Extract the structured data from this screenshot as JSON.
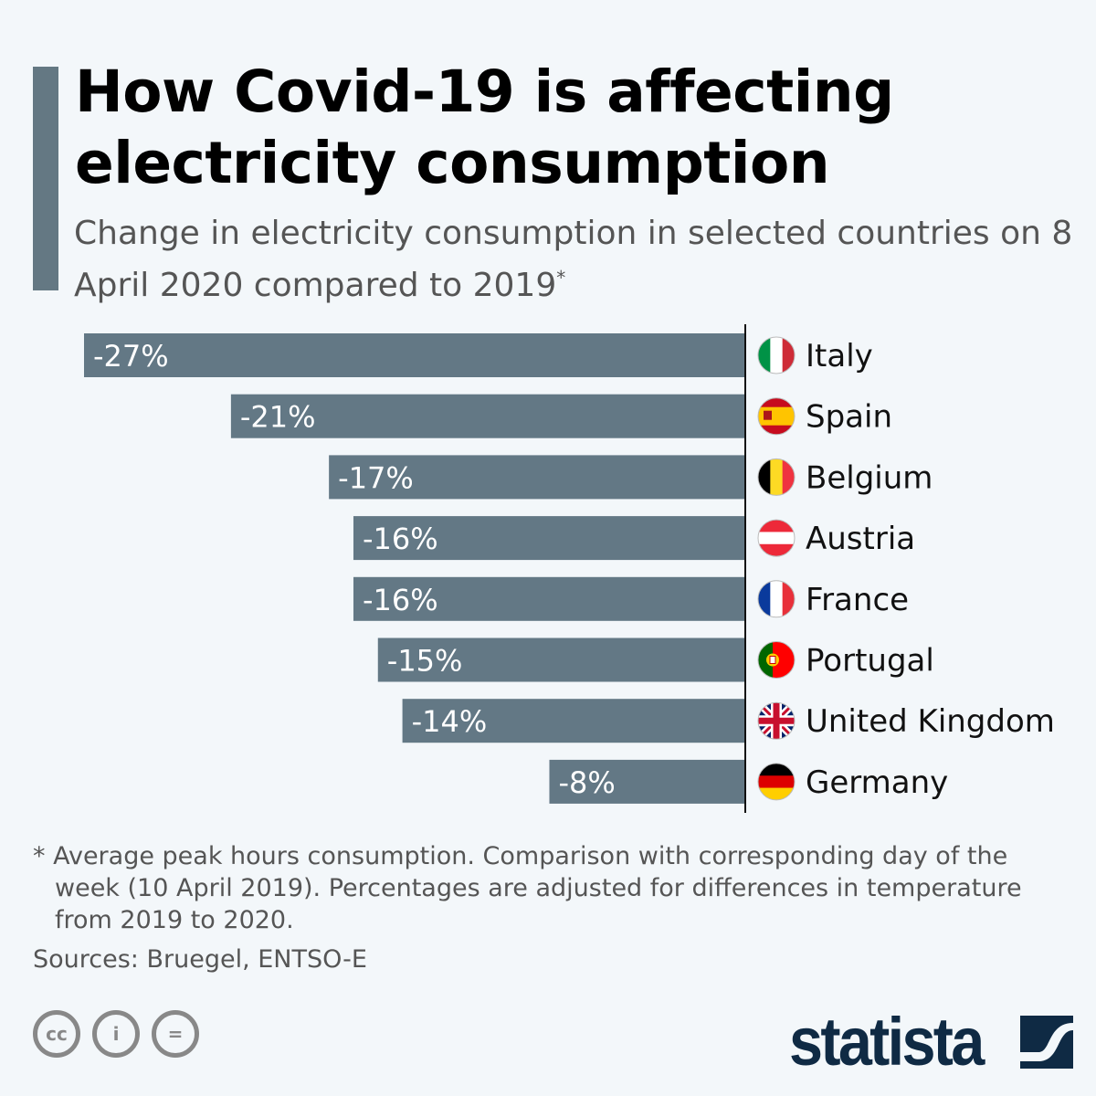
{
  "title": "How Covid-19 is affecting electricity consumption",
  "subtitle": "Change in electricity consumption in selected countries on 8 April 2020 compared to 2019",
  "subtitle_mark": "*",
  "chart_data": {
    "type": "bar",
    "orientation": "horizontal",
    "categories": [
      "Italy",
      "Spain",
      "Belgium",
      "Austria",
      "France",
      "Portugal",
      "United Kingdom",
      "Germany"
    ],
    "values": [
      -27,
      -21,
      -17,
      -16,
      -16,
      -15,
      -14,
      -8
    ],
    "labels": [
      "-27%",
      "-21%",
      "-17%",
      "-16%",
      "-16%",
      "-15%",
      "-14%",
      "-8%"
    ],
    "flags": [
      "italy-flag-icon",
      "spain-flag-icon",
      "belgium-flag-icon",
      "austria-flag-icon",
      "france-flag-icon",
      "portugal-flag-icon",
      "uk-flag-icon",
      "germany-flag-icon"
    ],
    "unit": "%",
    "xlim": [
      -27,
      0
    ],
    "grid": false,
    "bar_color": "#637885"
  },
  "footnote": "* Average peak hours consumption. Comparison with corresponding day of the week (10 April 2019). Percentages are adjusted for differences in temperature from 2019 to 2020.",
  "sources": "Sources: Bruegel, ENTSO-E",
  "license_icons": [
    "cc",
    "i",
    "="
  ],
  "brand": "statista",
  "colors": {
    "background": "#f3f7fa",
    "accent": "#647883",
    "brand": "#0f2a44"
  }
}
